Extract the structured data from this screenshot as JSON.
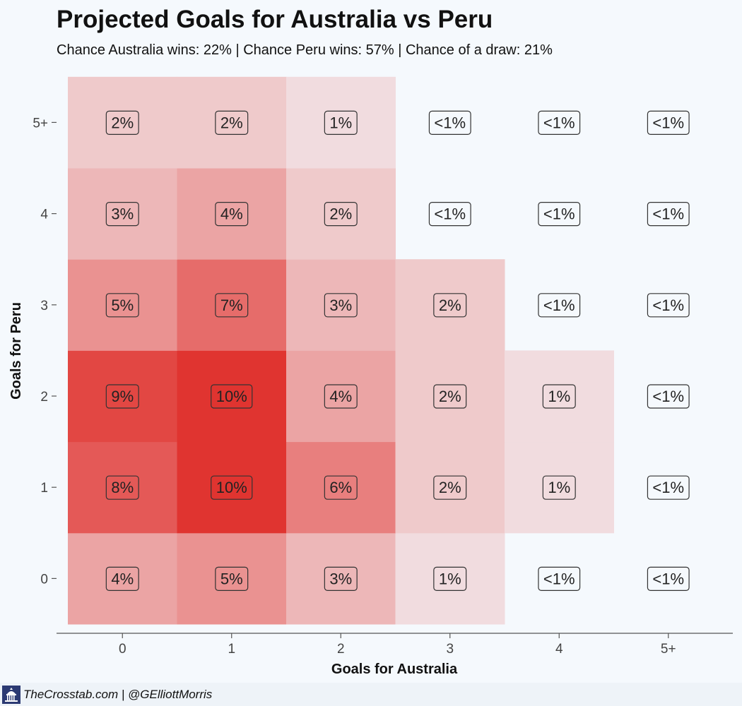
{
  "chart_data": {
    "type": "heatmap",
    "title": "Projected Goals for Australia vs Peru",
    "subtitle": "Chance Australia wins: 22% | Chance Peru wins: 57% | Chance of a draw: 21%",
    "xlabel": "Goals for Australia",
    "ylabel": "Goals for Peru",
    "x_categories": [
      "0",
      "1",
      "2",
      "3",
      "4",
      "5+"
    ],
    "y_categories": [
      "0",
      "1",
      "2",
      "3",
      "4",
      "5+"
    ],
    "values": [
      [
        4,
        5,
        3,
        1,
        0.3,
        0.2
      ],
      [
        8,
        10,
        6,
        2,
        1,
        0.3
      ],
      [
        9,
        10,
        4,
        2,
        1,
        0.3
      ],
      [
        5,
        7,
        3,
        2,
        0.3,
        0.2
      ],
      [
        3,
        4,
        2,
        0.4,
        0.2,
        0.1
      ],
      [
        2,
        2,
        1,
        0.3,
        0.2,
        0.1
      ]
    ],
    "labels": [
      [
        "4%",
        "5%",
        "3%",
        "1%",
        "<1%",
        "<1%"
      ],
      [
        "8%",
        "10%",
        "6%",
        "2%",
        "1%",
        "<1%"
      ],
      [
        "9%",
        "10%",
        "4%",
        "2%",
        "1%",
        "<1%"
      ],
      [
        "5%",
        "7%",
        "3%",
        "2%",
        "<1%",
        "<1%"
      ],
      [
        "3%",
        "4%",
        "2%",
        "<1%",
        "<1%",
        "<1%"
      ],
      [
        "2%",
        "2%",
        "1%",
        "<1%",
        "<1%",
        "<1%"
      ]
    ],
    "colors": {
      "high": "#e03430",
      "low": "#f3eff2",
      "background": "#f5f9fd"
    }
  },
  "footer": {
    "credit": "TheCrosstab.com | @GElliottMorris",
    "icon": "capitol-icon"
  }
}
